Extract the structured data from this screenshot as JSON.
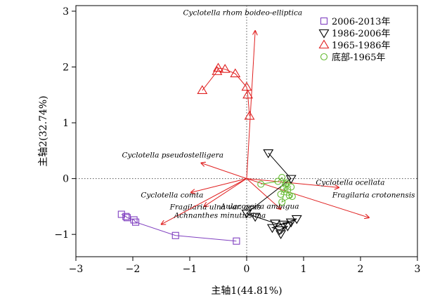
{
  "chart_data": {
    "type": "scatter",
    "xlabel": "主轴1(44.81%)",
    "ylabel": "主轴2(32.74%)",
    "xlim": [
      -3,
      3
    ],
    "ylim": [
      -1.4,
      3.1
    ],
    "xticks": [
      "−3",
      "−2",
      "−1",
      "0",
      "1",
      "2",
      "3"
    ],
    "yticks": [
      "−1",
      "0",
      "1",
      "2",
      "3"
    ],
    "xtick_values": [
      -3,
      -2,
      -1,
      0,
      1,
      2,
      3
    ],
    "ytick_values": [
      -1,
      0,
      1,
      2,
      3
    ],
    "reference_lines": {
      "x": 0,
      "y": 0,
      "style": "dotted"
    },
    "series": [
      {
        "name": "2006-2013年",
        "marker": "square",
        "color": "#8040C0",
        "connected": true,
        "points": [
          [
            -2.2,
            -0.64
          ],
          [
            -2.12,
            -0.68
          ],
          [
            -2.1,
            -0.7
          ],
          [
            -1.98,
            -0.74
          ],
          [
            -1.95,
            -0.78
          ],
          [
            -1.25,
            -1.02
          ],
          [
            -0.18,
            -1.12
          ]
        ]
      },
      {
        "name": "1986-2006年",
        "marker": "triangle-down",
        "color": "#000000",
        "connected": true,
        "points": [
          [
            0.38,
            0.46
          ],
          [
            0.78,
            0.0
          ],
          [
            0.0,
            -0.62
          ],
          [
            0.15,
            -0.68
          ],
          [
            0.5,
            -0.8
          ],
          [
            0.65,
            -0.82
          ],
          [
            0.78,
            -0.78
          ],
          [
            0.88,
            -0.72
          ],
          [
            0.45,
            -0.88
          ],
          [
            0.58,
            -0.92
          ],
          [
            0.72,
            -0.85
          ],
          [
            0.6,
            -0.99
          ]
        ]
      },
      {
        "name": "1965-1986年",
        "marker": "triangle-up",
        "color": "#E02020",
        "connected": true,
        "points": [
          [
            -0.78,
            1.58
          ],
          [
            -0.52,
            1.92
          ],
          [
            -0.5,
            1.98
          ],
          [
            -0.38,
            1.96
          ],
          [
            -0.2,
            1.88
          ],
          [
            0.0,
            1.64
          ],
          [
            0.02,
            1.5
          ],
          [
            0.05,
            1.12
          ]
        ]
      },
      {
        "name": "底部-1965年",
        "marker": "circle",
        "color": "#66BB33",
        "connected": true,
        "points": [
          [
            0.25,
            -0.1
          ],
          [
            0.55,
            -0.05
          ],
          [
            0.62,
            0.02
          ],
          [
            0.68,
            -0.1
          ],
          [
            0.72,
            -0.2
          ],
          [
            0.75,
            -0.3
          ],
          [
            0.6,
            -0.28
          ],
          [
            0.65,
            -0.18
          ],
          [
            0.8,
            -0.32
          ],
          [
            0.62,
            -0.42
          ],
          [
            0.7,
            -0.08
          ],
          [
            0.78,
            -0.15
          ]
        ]
      }
    ],
    "vectors": [
      {
        "name": "Cyclotella rhom boideo-elliptica",
        "end": [
          0.15,
          2.65
        ]
      },
      {
        "name": "Cyclotella pseudostelligera",
        "end": [
          -0.8,
          0.28
        ]
      },
      {
        "name": "Cyclotella comta",
        "end": [
          -0.98,
          -0.25
        ]
      },
      {
        "name": "Fragilaria ulna var. acus",
        "end": [
          -0.75,
          -0.5
        ]
      },
      {
        "name": "Achnanthes minutissima",
        "end": [
          -1.5,
          -0.82
        ]
      },
      {
        "name": "Aulacoseira ambigua",
        "end": [
          0.6,
          -0.55
        ]
      },
      {
        "name": "Cyclotella ocellata",
        "end": [
          1.62,
          -0.16
        ]
      },
      {
        "name": "Fragilaria crotonensis",
        "end": [
          2.15,
          -0.7
        ]
      }
    ],
    "legend": {
      "position": "top-right"
    },
    "grid": false
  }
}
